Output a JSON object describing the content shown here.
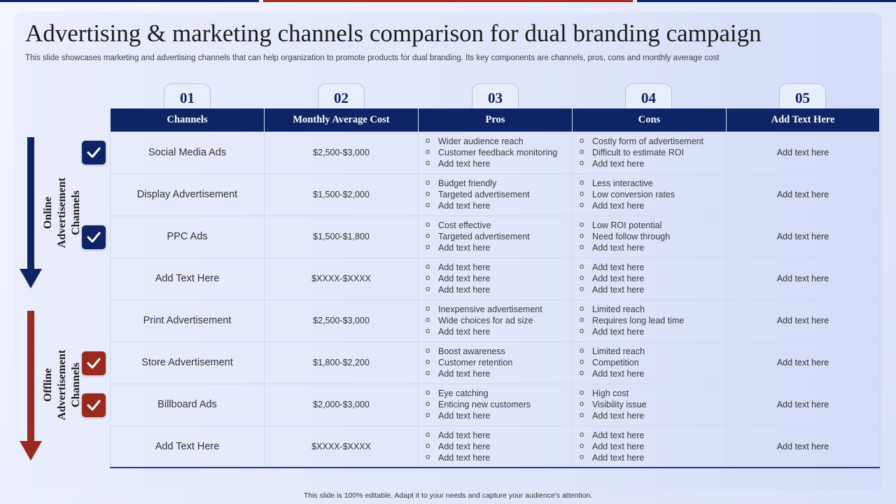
{
  "title": "Advertising & marketing channels comparison for dual branding campaign",
  "subtitle": "This slide showcases marketing and advertising channels that can help organization to promote products for dual branding. Its key components are channels, pros, cons and monthly average cost",
  "numbers": [
    "01",
    "02",
    "03",
    "04",
    "05"
  ],
  "headers": [
    "Channels",
    "Monthly Average Cost",
    "Pros",
    "Cons",
    "Add Text Here"
  ],
  "groups": {
    "online": "Online Advertisement Channels",
    "offline": "Offline Advertisement Channels"
  },
  "rows": [
    {
      "channel": "Social Media Ads",
      "cost": "$2,500-$3,000",
      "pros": [
        "Wider audience reach",
        "Customer feedback monitoring",
        "Add text here"
      ],
      "cons": [
        "Costly form of advertisement",
        "Difficult to estimate ROI",
        "Add text here"
      ],
      "extra": "Add text here"
    },
    {
      "channel": "Display Advertisement",
      "cost": "$1,500-$2,000",
      "pros": [
        "Budget friendly",
        "Targeted advertisement",
        "Add text here"
      ],
      "cons": [
        "Less interactive",
        "Low conversion rates",
        "Add text here"
      ],
      "extra": "Add text here"
    },
    {
      "channel": "PPC Ads",
      "cost": "$1,500-$1,800",
      "pros": [
        "Cost effective",
        "Targeted advertisement",
        "Add text here"
      ],
      "cons": [
        "Low ROI potential",
        "Need follow through",
        "Add text here"
      ],
      "extra": "Add text here"
    },
    {
      "channel": "Add Text Here",
      "cost": "$XXXX-$XXXX",
      "pros": [
        "Add text here",
        "Add text here",
        "Add text here"
      ],
      "cons": [
        "Add text here",
        "Add text here",
        "Add text here"
      ],
      "extra": "Add text here"
    },
    {
      "channel": "Print Advertisement",
      "cost": "$2,500-$3,000",
      "pros": [
        "Inexpensive advertisement",
        "Wide choices for ad size",
        "Add text here"
      ],
      "cons": [
        "Limited reach",
        "Requires long lead time",
        "Add text here"
      ],
      "extra": "Add text here"
    },
    {
      "channel": "Store Advertisement",
      "cost": "$1,800-$2,200",
      "pros": [
        "Boost awareness",
        "Customer retention",
        "Add text here"
      ],
      "cons": [
        "Limited reach",
        "Competition",
        "Add text here"
      ],
      "extra": "Add text here"
    },
    {
      "channel": "Billboard Ads",
      "cost": "$2,000-$3,000",
      "pros": [
        "Eye catching",
        "Enticing new customers",
        "Add text here"
      ],
      "cons": [
        "High cost",
        "Visibility issue",
        "Add text here"
      ],
      "extra": "Add text here"
    },
    {
      "channel": "Add Text Here",
      "cost": "$XXXX-$XXXX",
      "pros": [
        "Add text here",
        "Add text here",
        "Add text here"
      ],
      "cons": [
        "Add text here",
        "Add text here",
        "Add text here"
      ],
      "extra": "Add text here"
    }
  ],
  "footer": "This slide is 100% editable. Adapt it to your needs and capture your audience's attention.",
  "colors": {
    "navy": "#0e2467",
    "red": "#9b2a1e",
    "background": "#e6ebfb"
  },
  "icons": {
    "check": "check-icon",
    "online_arrow": "arrow-down-icon",
    "offline_arrow": "arrow-down-icon"
  }
}
